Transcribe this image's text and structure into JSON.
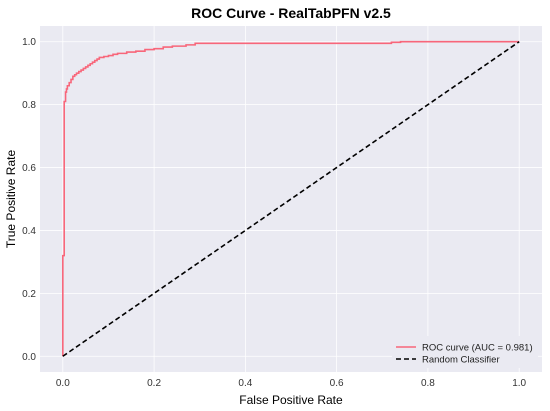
{
  "chart_data": {
    "type": "line",
    "title": "ROC Curve - RealTabPFN v2.5",
    "xlabel": "False Positive Rate",
    "ylabel": "True Positive Rate",
    "xlim": [
      -0.05,
      1.05
    ],
    "ylim": [
      -0.05,
      1.05
    ],
    "xticks": [
      0.0,
      0.2,
      0.4,
      0.6,
      0.8,
      1.0
    ],
    "xtick_labels": [
      "0.0",
      "0.2",
      "0.4",
      "0.6",
      "0.8",
      "1.0"
    ],
    "yticks": [
      0.0,
      0.2,
      0.4,
      0.6,
      0.8,
      1.0
    ],
    "ytick_labels": [
      "0.0",
      "0.2",
      "0.4",
      "0.6",
      "0.8",
      "1.0"
    ],
    "grid": true,
    "legend_position": "lower-right",
    "background": "#eaeaf2",
    "series": [
      {
        "name": "ROC curve (AUC = 0.981)",
        "color": "#f8667a",
        "style": "solid",
        "x": [
          0.0,
          0.0,
          0.003,
          0.003,
          0.006,
          0.006,
          0.008,
          0.008,
          0.01,
          0.01,
          0.014,
          0.014,
          0.018,
          0.018,
          0.022,
          0.022,
          0.026,
          0.026,
          0.03,
          0.03,
          0.035,
          0.035,
          0.04,
          0.04,
          0.045,
          0.045,
          0.05,
          0.05,
          0.055,
          0.055,
          0.06,
          0.06,
          0.065,
          0.065,
          0.07,
          0.07,
          0.075,
          0.075,
          0.08,
          0.08,
          0.09,
          0.09,
          0.1,
          0.1,
          0.11,
          0.11,
          0.12,
          0.12,
          0.14,
          0.14,
          0.16,
          0.16,
          0.18,
          0.18,
          0.2,
          0.2,
          0.22,
          0.22,
          0.24,
          0.24,
          0.27,
          0.27,
          0.29,
          0.29,
          0.72,
          0.72,
          0.74,
          0.74,
          1.0
        ],
        "y": [
          0.0,
          0.32,
          0.32,
          0.81,
          0.81,
          0.84,
          0.84,
          0.85,
          0.85,
          0.86,
          0.86,
          0.87,
          0.87,
          0.88,
          0.88,
          0.89,
          0.89,
          0.895,
          0.895,
          0.9,
          0.9,
          0.905,
          0.905,
          0.91,
          0.91,
          0.915,
          0.915,
          0.92,
          0.92,
          0.925,
          0.925,
          0.93,
          0.93,
          0.935,
          0.935,
          0.94,
          0.94,
          0.945,
          0.945,
          0.95,
          0.95,
          0.953,
          0.953,
          0.956,
          0.956,
          0.96,
          0.96,
          0.963,
          0.963,
          0.967,
          0.967,
          0.97,
          0.97,
          0.975,
          0.975,
          0.978,
          0.978,
          0.983,
          0.983,
          0.986,
          0.986,
          0.99,
          0.99,
          0.995,
          0.995,
          0.998,
          0.998,
          1.0,
          1.0
        ]
      },
      {
        "name": "Random Classifier",
        "color": "#000000",
        "style": "dashed",
        "x": [
          0.0,
          1.0
        ],
        "y": [
          0.0,
          1.0
        ]
      }
    ]
  }
}
